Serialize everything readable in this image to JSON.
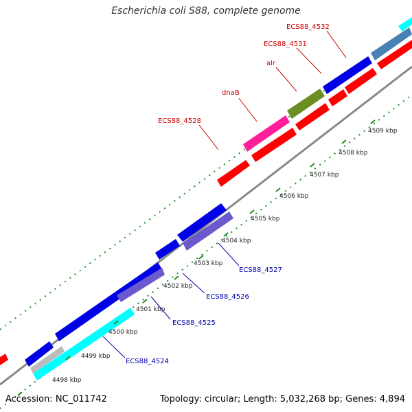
{
  "map": {
    "title": "Escherichia coli S88, complete genome",
    "accession": "Accession: NC_011742",
    "summary": "Topology: circular; Length: 5,032,268 bp; Genes: 4,894"
  },
  "ticks": [
    "4498 kbp",
    "4499 kbp",
    "4500 kbp",
    "4501 kbp",
    "4502 kbp",
    "4503 kbp",
    "4504 kbp",
    "4505 kbp",
    "4506 kbp",
    "4507 kbp",
    "4508 kbp",
    "4509 kbp"
  ],
  "labels_top": [
    "ECS88_4528",
    "dnaB",
    "alr",
    "ECS88_4531",
    "ECS88_4532"
  ],
  "labels_bottom": [
    "ECS88_4524",
    "ECS88_4525",
    "ECS88_4526",
    "ECS88_4527"
  ],
  "colors": {
    "forward_cds": "#ff0000",
    "reverse_cds": "#0000e6",
    "top_label": "#cc0000",
    "bottom_label": "#0000aa",
    "backbone": "#888888",
    "tick_marks": "#228b22",
    "dnaB": "#ff1f9a",
    "alr": "#6b8e23",
    "steelblue": "#4682b4",
    "cyan": "#00ffff",
    "lavender": "#6a5acd"
  }
}
